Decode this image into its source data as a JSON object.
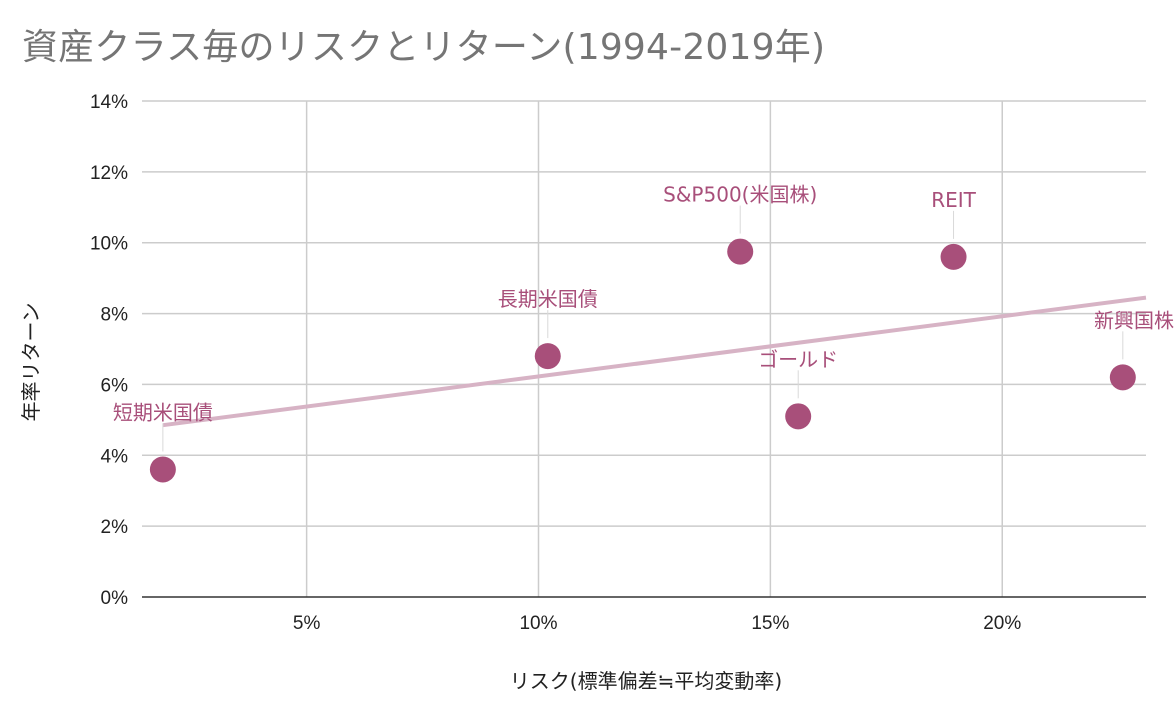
{
  "chart_data": {
    "type": "scatter",
    "title": "資産クラス毎のリスクとリターン(1994-2019年)",
    "xlabel": "リスク(標準偏差≒平均変動率)",
    "ylabel": "年率リターン",
    "xlim": [
      1.45,
      23.1
    ],
    "ylim": [
      0,
      14
    ],
    "x_ticks": [
      {
        "value": 5,
        "label": "5%"
      },
      {
        "value": 10,
        "label": "10%"
      },
      {
        "value": 15,
        "label": "15%"
      },
      {
        "value": 20,
        "label": "20%"
      }
    ],
    "y_ticks": [
      {
        "value": 0,
        "label": "0%"
      },
      {
        "value": 2,
        "label": "2%"
      },
      {
        "value": 4,
        "label": "4%"
      },
      {
        "value": 6,
        "label": "6%"
      },
      {
        "value": 8,
        "label": "8%"
      },
      {
        "value": 10,
        "label": "10%"
      },
      {
        "value": 12,
        "label": "12%"
      },
      {
        "value": 14,
        "label": "14%"
      }
    ],
    "grid": true,
    "legend": "none",
    "points": [
      {
        "label": "短期米国債",
        "x": 1.9,
        "y": 3.6
      },
      {
        "label": "長期米国債",
        "x": 10.2,
        "y": 6.8
      },
      {
        "label": "S&P500(米国株)",
        "x": 14.35,
        "y": 9.75
      },
      {
        "label": "ゴールド",
        "x": 15.6,
        "y": 5.1
      },
      {
        "label": "REIT",
        "x": 18.95,
        "y": 9.6
      },
      {
        "label": "新興国株",
        "x": 22.6,
        "y": 6.2
      }
    ],
    "trendline": {
      "x": [
        1.9,
        23.1
      ],
      "y": [
        4.85,
        8.45
      ]
    },
    "colors": {
      "point": "#a84f7a",
      "label": "#a84f7a",
      "trendline": "#d7b3c5",
      "grid": "#cccccc",
      "axis": "#333333",
      "title": "#757575"
    }
  }
}
